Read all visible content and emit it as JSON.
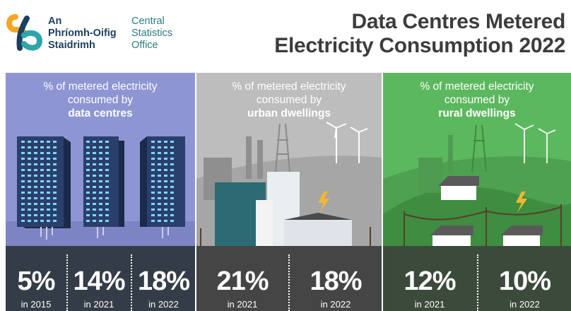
{
  "header": {
    "org_irish": [
      "An",
      "Phríomh-Oifig",
      "Staidrimh"
    ],
    "org_english": [
      "Central",
      "Statistics",
      "Office"
    ],
    "title": [
      "Data Centres Metered",
      "Electricity Consumption 2022"
    ]
  },
  "colors": {
    "panel_data_centres": "#8e95d3",
    "panel_urban": "#bdbdbd",
    "panel_rural": "#5cb85e",
    "band_data_centres": "#343c47",
    "band_urban": "#454545",
    "band_rural": "#3c4a3c",
    "accent_bolt": "#f4b733"
  },
  "panels": [
    {
      "line1": "% of metered electricity",
      "line2": "consumed by",
      "category": "data centres",
      "stats": [
        {
          "value": "5%",
          "year": "in 2015"
        },
        {
          "value": "14%",
          "year": "in 2021"
        },
        {
          "value": "18%",
          "year": "in 2022"
        }
      ]
    },
    {
      "line1": "% of metered electricity",
      "line2": "consumed by",
      "category": "urban dwellings",
      "stats": [
        {
          "value": "21%",
          "year": "in 2021"
        },
        {
          "value": "18%",
          "year": "in 2022"
        }
      ]
    },
    {
      "line1": "% of metered electricity",
      "line2": "consumed by",
      "category": "rural dwellings",
      "stats": [
        {
          "value": "12%",
          "year": "in 2021"
        },
        {
          "value": "10%",
          "year": "in 2022"
        }
      ]
    }
  ]
}
